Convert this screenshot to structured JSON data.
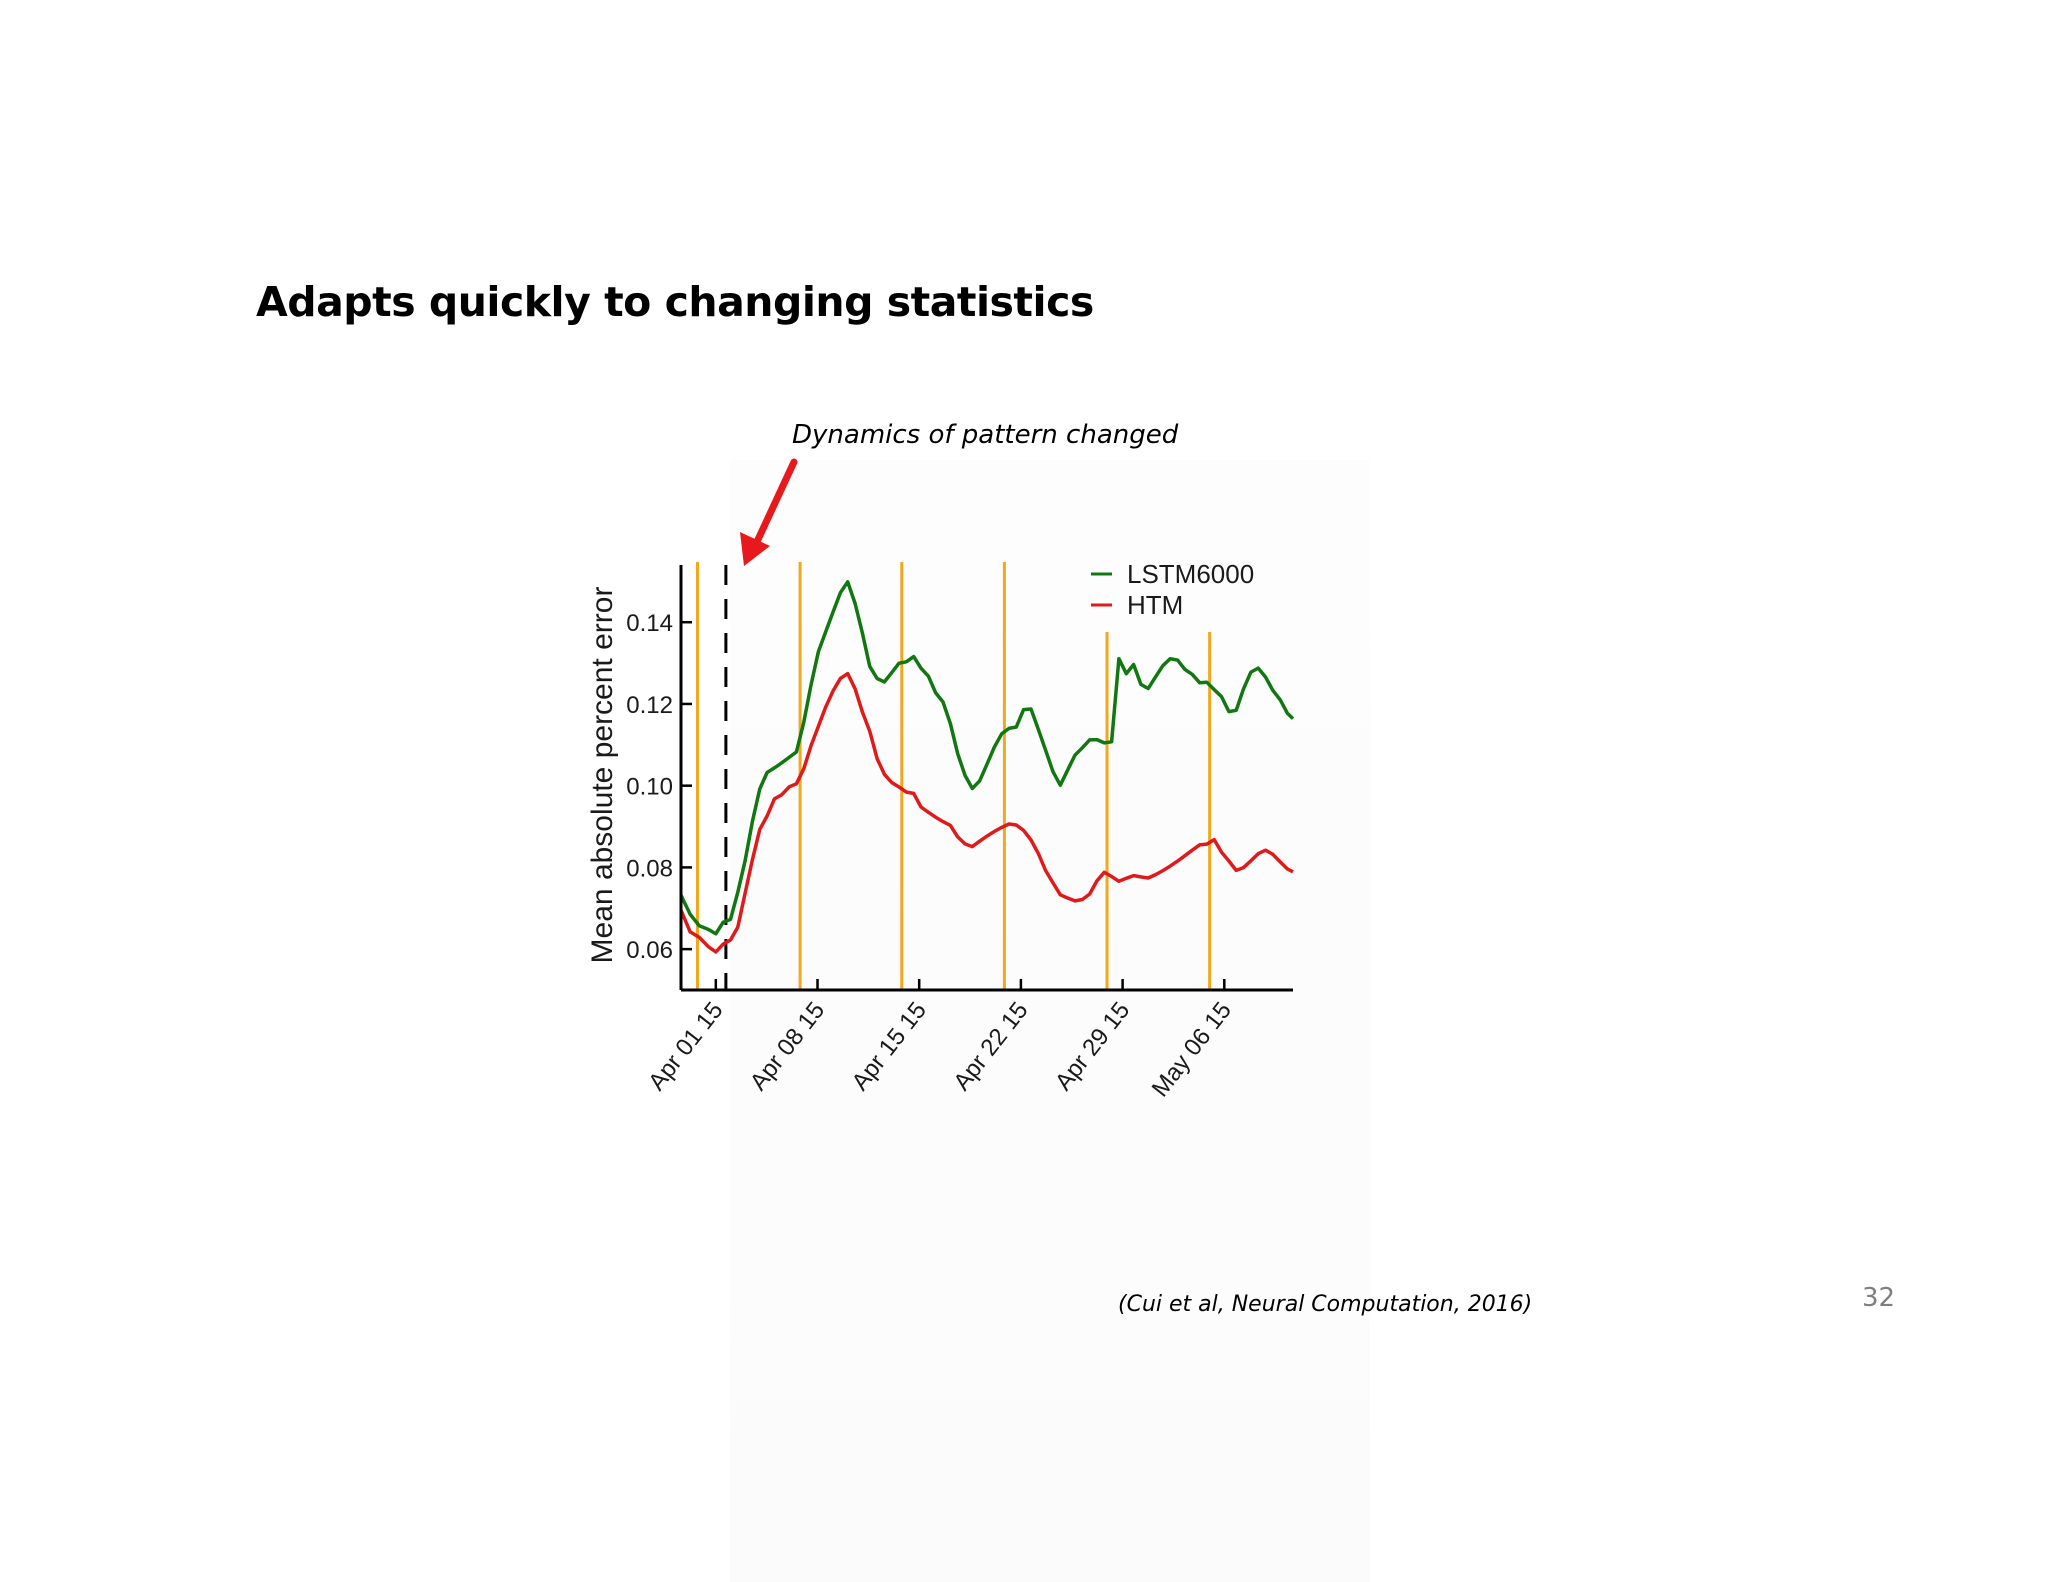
{
  "slide": {
    "title": "Adapts quickly to changing statistics",
    "annotation": "Dynamics of pattern changed",
    "citation": "(Cui et al, Neural Computation, 2016)",
    "page_number": "32"
  },
  "colors": {
    "lstm": "#117711",
    "htm": "#e01a1a",
    "event_lines": "#f2a81d",
    "change_line": "#000000",
    "arrow": "#e8191d"
  },
  "chart_data": {
    "type": "line",
    "title": "",
    "xlabel": "",
    "ylabel": "Mean absolute percent error",
    "x_unit": "days since Apr 01 15",
    "xlim": [
      -1.9,
      31.5
    ],
    "ylim": [
      0.05,
      0.154
    ],
    "yticks": [
      0.06,
      0.08,
      0.1,
      0.12,
      0.14
    ],
    "ytick_labels": [
      "0.06",
      "0.08",
      "0.10",
      "0.12",
      "0.14"
    ],
    "xticks": [
      0,
      5.55,
      11.1,
      16.65,
      22.2,
      27.75
    ],
    "xtick_labels": [
      "Apr 01 15",
      "Apr 08 15",
      "Apr 15 15",
      "Apr 22 15",
      "Apr 29 15",
      "May 06 15"
    ],
    "legend": {
      "position": "top-right",
      "entries": [
        "LSTM6000",
        "HTM"
      ]
    },
    "event_lines_x": [
      -1.0,
      4.6,
      10.15,
      15.75,
      21.35,
      26.95
    ],
    "change_point_x": 0.55,
    "x": [
      -1.9,
      -1.4,
      -0.9,
      -0.4,
      0.0,
      0.4,
      0.8,
      1.2,
      1.6,
      2.0,
      2.4,
      2.8,
      3.2,
      3.6,
      4.0,
      4.4,
      4.8,
      5.2,
      5.6,
      6.0,
      6.4,
      6.8,
      7.2,
      7.6,
      8.0,
      8.4,
      8.8,
      9.2,
      9.6,
      10.0,
      10.4,
      10.8,
      11.2,
      11.6,
      12.0,
      12.4,
      12.8,
      13.2,
      13.6,
      14.0,
      14.4,
      14.8,
      15.2,
      15.6,
      16.0,
      16.4,
      16.8,
      17.2,
      17.6,
      18.0,
      18.4,
      18.8,
      19.2,
      19.6,
      20.0,
      20.4,
      20.8,
      21.2,
      21.6,
      22.0,
      22.4,
      22.8,
      23.2,
      23.6,
      24.0,
      24.4,
      24.8,
      25.2,
      25.6,
      26.0,
      26.4,
      26.8,
      27.2,
      27.6,
      28.0,
      28.4,
      28.8,
      29.2,
      29.6,
      30.0,
      30.4,
      30.8,
      31.2,
      31.5
    ],
    "series": [
      {
        "name": "LSTM6000",
        "values": [
          0.073,
          0.068,
          0.065,
          0.064,
          0.063,
          0.066,
          0.067,
          0.074,
          0.082,
          0.092,
          0.1,
          0.104,
          0.105,
          0.106,
          0.107,
          0.108,
          0.115,
          0.124,
          0.132,
          0.137,
          0.142,
          0.147,
          0.15,
          0.145,
          0.138,
          0.13,
          0.127,
          0.126,
          0.128,
          0.13,
          0.13,
          0.131,
          0.128,
          0.126,
          0.122,
          0.12,
          0.115,
          0.108,
          0.103,
          0.1,
          0.102,
          0.106,
          0.11,
          0.113,
          0.114,
          0.114,
          0.118,
          0.118,
          0.113,
          0.108,
          0.103,
          0.1,
          0.104,
          0.108,
          0.11,
          0.112,
          0.112,
          0.111,
          0.111,
          0.131,
          0.127,
          0.129,
          0.124,
          0.123,
          0.126,
          0.129,
          0.131,
          0.131,
          0.129,
          0.128,
          0.126,
          0.126,
          0.124,
          0.122,
          0.118,
          0.118,
          0.123,
          0.127,
          0.128,
          0.126,
          0.123,
          0.121,
          0.118,
          0.117
        ]
      },
      {
        "name": "HTM",
        "values": [
          0.069,
          0.064,
          0.063,
          0.061,
          0.06,
          0.062,
          0.063,
          0.066,
          0.074,
          0.082,
          0.089,
          0.092,
          0.096,
          0.097,
          0.099,
          0.1,
          0.104,
          0.11,
          0.115,
          0.12,
          0.124,
          0.127,
          0.128,
          0.124,
          0.118,
          0.113,
          0.106,
          0.102,
          0.1,
          0.099,
          0.098,
          0.098,
          0.095,
          0.094,
          0.093,
          0.092,
          0.091,
          0.088,
          0.086,
          0.085,
          0.086,
          0.087,
          0.088,
          0.089,
          0.09,
          0.09,
          0.089,
          0.087,
          0.084,
          0.08,
          0.077,
          0.074,
          0.073,
          0.072,
          0.072,
          0.073,
          0.076,
          0.078,
          0.077,
          0.076,
          0.077,
          0.078,
          0.078,
          0.078,
          0.079,
          0.08,
          0.081,
          0.082,
          0.083,
          0.084,
          0.085,
          0.085,
          0.086,
          0.083,
          0.081,
          0.079,
          0.08,
          0.082,
          0.084,
          0.085,
          0.084,
          0.082,
          0.08,
          0.079
        ]
      }
    ]
  }
}
